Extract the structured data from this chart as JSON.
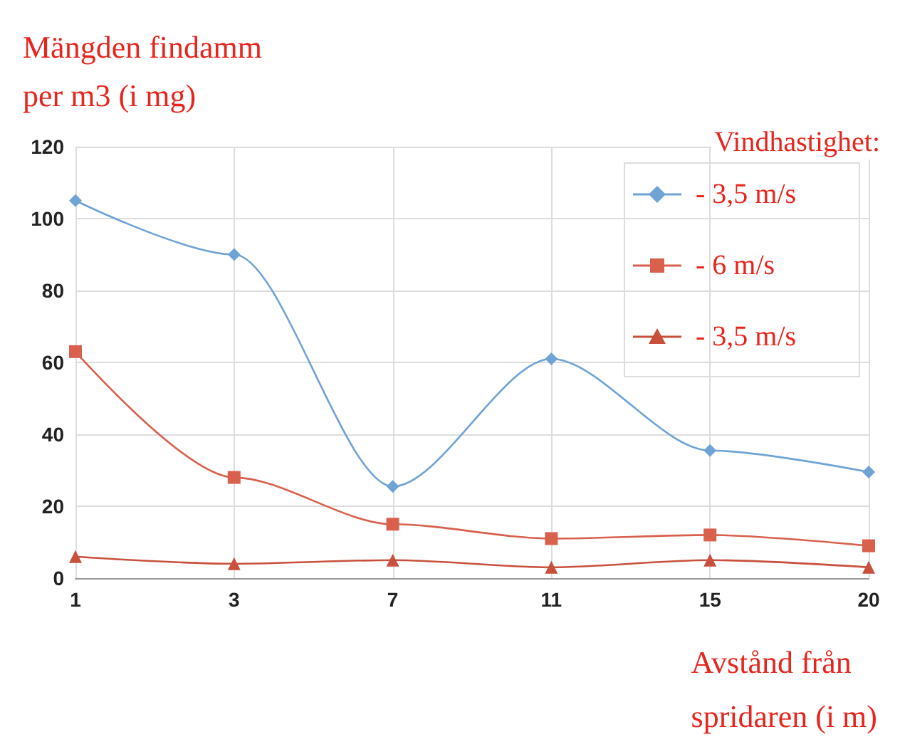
{
  "chart_data": {
    "type": "line",
    "ylabel": "Mängden findamm\nper m3 (i mg)",
    "xlabel": "Avstånd från\nspridaren (i m)",
    "legend_title": "Vindhastighet:",
    "categories": [
      "1",
      "3",
      "7",
      "11",
      "15",
      "20"
    ],
    "series": [
      {
        "name": "- 3,5 m/s",
        "color": "#6fa3d6",
        "marker": "diamond",
        "values": [
          105,
          90,
          25.5,
          61,
          35.5,
          29.5
        ]
      },
      {
        "name": "- 6 m/s",
        "color": "#d9604d",
        "marker": "square",
        "values": [
          63,
          28,
          15,
          11,
          12,
          9
        ]
      },
      {
        "name": "- 3,5 m/s",
        "color": "#c9503c",
        "marker": "triangle",
        "values": [
          6,
          4,
          5,
          3,
          5,
          3
        ]
      }
    ],
    "ylim": [
      0,
      120
    ],
    "yticks": [
      0,
      20,
      40,
      60,
      80,
      100,
      120
    ],
    "grid": true,
    "legend": "right",
    "line_style": "solid"
  }
}
